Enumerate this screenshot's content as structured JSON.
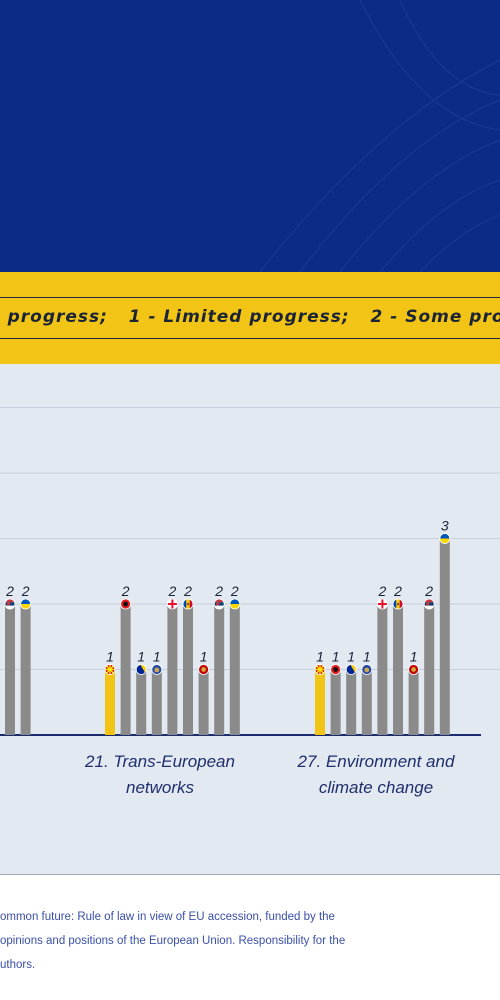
{
  "legend": {
    "text": "o progress;   1 - Limited progress;   2 - Some prog"
  },
  "chart_data": {
    "type": "bar",
    "title": "",
    "ylim": [
      0,
      5
    ],
    "grid": true,
    "groups": [
      {
        "label_lines": [],
        "bars": [
          {
            "value": 2,
            "flag": "serbia",
            "color": "#8a8a8a"
          },
          {
            "value": 2,
            "flag": "ukraine",
            "color": "#8a8a8a"
          }
        ]
      },
      {
        "label_lines": [
          "21. Trans-European",
          "networks"
        ],
        "bars": [
          {
            "value": 1,
            "flag": "north-macedonia",
            "color": "#f2c416"
          },
          {
            "value": 2,
            "flag": "albania",
            "color": "#8a8a8a"
          },
          {
            "value": 1,
            "flag": "bosnia",
            "color": "#8a8a8a"
          },
          {
            "value": 1,
            "flag": "kosovo",
            "color": "#8a8a8a"
          },
          {
            "value": 2,
            "flag": "georgia",
            "color": "#8a8a8a"
          },
          {
            "value": 2,
            "flag": "moldova",
            "color": "#8a8a8a"
          },
          {
            "value": 1,
            "flag": "montenegro",
            "color": "#8a8a8a"
          },
          {
            "value": 2,
            "flag": "serbia",
            "color": "#8a8a8a"
          },
          {
            "value": 2,
            "flag": "ukraine",
            "color": "#8a8a8a"
          }
        ]
      },
      {
        "label_lines": [
          "27. Environment and",
          "climate change"
        ],
        "bars": [
          {
            "value": 1,
            "flag": "north-macedonia",
            "color": "#f2c416"
          },
          {
            "value": 1,
            "flag": "albania",
            "color": "#8a8a8a"
          },
          {
            "value": 1,
            "flag": "bosnia",
            "color": "#8a8a8a"
          },
          {
            "value": 1,
            "flag": "kosovo",
            "color": "#8a8a8a"
          },
          {
            "value": 2,
            "flag": "georgia",
            "color": "#8a8a8a"
          },
          {
            "value": 2,
            "flag": "moldova",
            "color": "#8a8a8a"
          },
          {
            "value": 1,
            "flag": "montenegro",
            "color": "#8a8a8a"
          },
          {
            "value": 2,
            "flag": "serbia",
            "color": "#8a8a8a"
          },
          {
            "value": 3,
            "flag": "ukraine",
            "color": "#8a8a8a"
          }
        ]
      }
    ]
  },
  "footer": {
    "lines": [
      "ommon future: Rule of law in view of EU accession, funded by the",
      "opinions and positions of the European Union. Responsibility for the",
      "uthors."
    ]
  },
  "colors": {
    "hero_blue": "#0b2c86",
    "band_yellow": "#f2c416",
    "chart_bg": "#e3e9f0",
    "bar_grey": "#8a8a8a",
    "footer_text": "#3a4fa8"
  }
}
